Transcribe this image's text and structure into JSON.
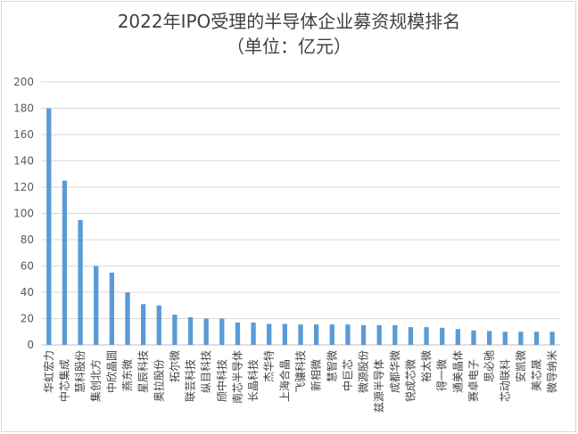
{
  "chart_data": {
    "type": "bar",
    "title": "2022年IPO受理的半导体企业募资规模排名",
    "subtitle": "（单位：亿元）",
    "xlabel": "",
    "ylabel": "",
    "ylim": [
      0,
      200
    ],
    "yticks": [
      0,
      20,
      40,
      60,
      80,
      100,
      120,
      140,
      160,
      180,
      200
    ],
    "grid": true,
    "legend": "none",
    "bar_color": "#5b9bd5",
    "categories": [
      "华虹宏力",
      "中芯集成",
      "慧科股份",
      "集创北方",
      "中欣晶圆",
      "燕东微",
      "星辰科技",
      "奥拉股份",
      "拓尔微",
      "联芸科技",
      "纵目科技",
      "颀中科技",
      "南芯半导体",
      "长晶科技",
      "杰华特",
      "上海合晶",
      "飞骧科技",
      "新相微",
      "慧智微",
      "中巨芯",
      "微源股份",
      "兹源半导体",
      "成都华微",
      "锐成芯微",
      "裕太微",
      "得一微",
      "通美晶体",
      "赛卓电子",
      "思必驰",
      "芯动联科",
      "安凯微",
      "美芯晟",
      "微导纳米"
    ],
    "values": [
      180,
      125,
      95,
      60,
      55,
      40,
      31,
      30,
      23,
      21,
      20,
      20,
      17,
      17,
      16,
      16,
      15.5,
      15.5,
      15.5,
      15.5,
      15,
      15,
      15,
      13.5,
      13.5,
      13,
      12,
      11,
      10.5,
      10,
      10,
      10,
      10
    ]
  }
}
